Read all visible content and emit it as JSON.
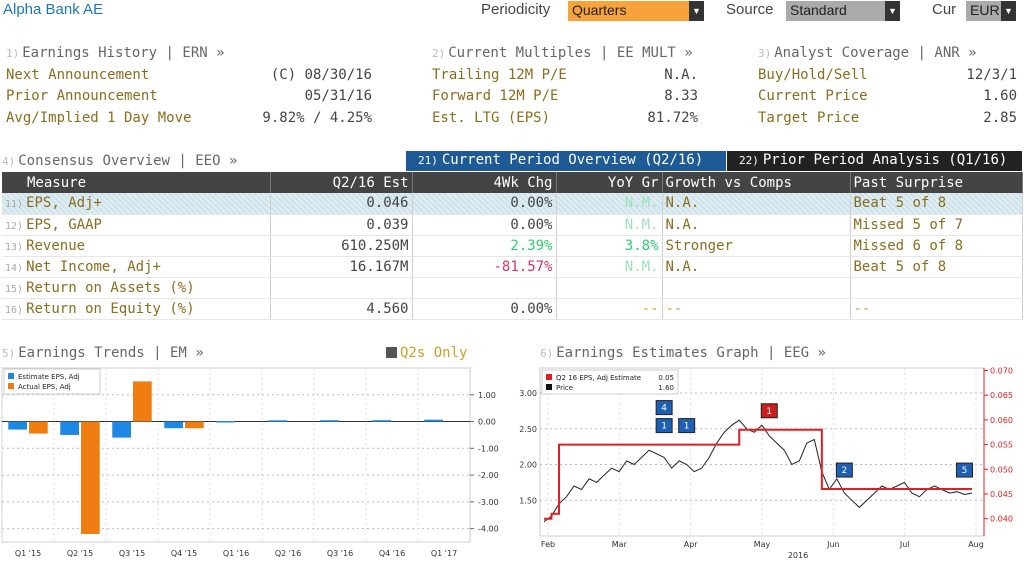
{
  "header": {
    "company": "Alpha Bank AE",
    "periodicity_label": "Periodicity",
    "periodicity_value": "Quarters",
    "source_label": "Source",
    "source_value": "Standard",
    "cur_label": "Cur",
    "cur_value": "EUR"
  },
  "earnings_history": {
    "num": "1)",
    "title": "Earnings History | ERN »",
    "rows": [
      {
        "label": "Next Announcement",
        "value": "(C)  08/30/16"
      },
      {
        "label": "Prior Announcement",
        "value": "05/31/16"
      },
      {
        "label": "Avg/Implied 1 Day Move",
        "value": "9.82% / 4.25%"
      }
    ]
  },
  "current_multiples": {
    "num": "2)",
    "title": "Current Multiples | EE MULT »",
    "rows": [
      {
        "label": "Trailing 12M P/E",
        "value": "N.A."
      },
      {
        "label": "Forward 12M P/E",
        "value": "8.33"
      },
      {
        "label": "Est. LTG (EPS)",
        "value": "81.72%"
      }
    ]
  },
  "analyst_coverage": {
    "num": "3)",
    "title": "Analyst Coverage | ANR »",
    "rows": [
      {
        "label": "Buy/Hold/Sell",
        "value": "12/3/1"
      },
      {
        "label": "Current Price",
        "value": "1.60"
      },
      {
        "label": "Target Price",
        "value": "2.85"
      }
    ]
  },
  "consensus": {
    "num": "4)",
    "title": "Consensus Overview | EEO »",
    "tab1_num": "21)",
    "tab1": "Current Period Overview (Q2/16)",
    "tab2_num": "22)",
    "tab2": "Prior Period Analysis (Q1/16)",
    "columns": [
      "Measure",
      "Q2/16 Est",
      "4Wk Chg",
      "YoY Gr",
      "Growth vs Comps",
      "Past Surprise"
    ],
    "rows": [
      {
        "num": "11)",
        "measure": "EPS, Adj+",
        "est": "0.046",
        "chg": "0.00%",
        "yoy": "N.M.",
        "comps": "N.A.",
        "surprise": "Beat 5 of 8"
      },
      {
        "num": "12)",
        "measure": "EPS, GAAP",
        "est": "0.039",
        "chg": "0.00%",
        "yoy": "N.M.",
        "comps": "N.A.",
        "surprise": "Missed 5 of 7"
      },
      {
        "num": "13)",
        "measure": "Revenue",
        "est": "610.250M",
        "chg": "2.39%",
        "yoy": "3.8%",
        "comps": "Stronger",
        "surprise": "Missed 6 of 8"
      },
      {
        "num": "14)",
        "measure": "Net Income, Adj+",
        "est": "16.167M",
        "chg": "-81.57%",
        "yoy": "N.M.",
        "comps": "N.A.",
        "surprise": "Beat 5 of 8"
      },
      {
        "num": "15)",
        "measure": "Return on Assets (%)",
        "est": "",
        "chg": "",
        "yoy": "",
        "comps": "",
        "surprise": ""
      },
      {
        "num": "16)",
        "measure": "Return on Equity (%)",
        "est": "4.560",
        "chg": "0.00%",
        "yoy": "--",
        "comps": "--",
        "surprise": "--"
      }
    ]
  },
  "earnings_trends": {
    "num": "5)",
    "title": "Earnings Trends | EM »",
    "q2only": "Q2s Only"
  },
  "earnings_estimates": {
    "num": "6)",
    "title": "Earnings Estimates Graph | EEG »"
  },
  "chart_data": [
    {
      "type": "bar",
      "categories": [
        "Q1 '15",
        "Q2 '15",
        "Q3 '15",
        "Q4 '15",
        "Q1 '16",
        "Q2 '16",
        "Q3 '16",
        "Q4 '16",
        "Q1 '17"
      ],
      "series": [
        {
          "name": "Estimate EPS, Adj",
          "color": "#1e88e5",
          "values": [
            -0.3,
            -0.5,
            -0.6,
            -0.25,
            0.02,
            0.046,
            0.05,
            0.05,
            0.07
          ]
        },
        {
          "name": "Actual EPS, Adj",
          "color": "#f07d12",
          "values": [
            -0.45,
            -4.2,
            1.5,
            -0.25,
            null,
            null,
            null,
            null,
            null
          ]
        }
      ],
      "ylim": [
        -4.5,
        2.0
      ],
      "yticks": [
        "1.00",
        "0.00",
        "-1.00",
        "-2.00",
        "-3.00",
        "-4.00"
      ],
      "ytick_values": [
        1,
        0,
        -1,
        -2,
        -3,
        -4
      ],
      "legend": "top-left",
      "grid": true
    },
    {
      "type": "line",
      "x_labels": [
        "Feb",
        "Mar",
        "Apr",
        "May",
        "Jun",
        "Jul",
        "Aug"
      ],
      "x_sub_label": "2016",
      "legend": "top-left",
      "legend_entries": [
        {
          "name": "Q2 16 EPS, Adj Estimate",
          "value": "0.05",
          "color": "#e02020"
        },
        {
          "name": "Price",
          "value": "1.60",
          "color": "#111111"
        }
      ],
      "left_axis": {
        "ticks": [
          "3.00",
          "2.50",
          "2.00",
          "1.50"
        ],
        "values": [
          3.0,
          2.5,
          2.0,
          1.5
        ],
        "range": [
          1.0,
          3.35
        ]
      },
      "right_axis": {
        "ticks": [
          "0.070",
          "0.065",
          "0.060",
          "0.055",
          "0.050",
          "0.045",
          "0.040"
        ],
        "values": [
          0.07,
          0.065,
          0.06,
          0.055,
          0.05,
          0.045,
          0.04
        ],
        "range": [
          0.0365,
          0.0705
        ]
      },
      "price": [
        1.2,
        1.28,
        1.45,
        1.55,
        1.7,
        1.65,
        1.8,
        1.75,
        1.85,
        1.95,
        1.9,
        2.05,
        2.0,
        2.1,
        2.2,
        2.15,
        2.1,
        1.95,
        2.05,
        2.0,
        1.9,
        1.95,
        2.1,
        2.3,
        2.45,
        2.55,
        2.62,
        2.5,
        2.45,
        2.55,
        2.4,
        2.3,
        2.2,
        2.0,
        2.05,
        2.3,
        2.35,
        1.9,
        1.65,
        1.8,
        1.6,
        1.5,
        1.4,
        1.5,
        1.6,
        1.7,
        1.65,
        1.7,
        1.75,
        1.6,
        1.55,
        1.65,
        1.7,
        1.65,
        1.6,
        1.62,
        1.58,
        1.6
      ],
      "estimate": [
        0.04,
        0.041,
        0.055,
        0.055,
        0.055,
        0.055,
        0.055,
        0.055,
        0.055,
        0.055,
        0.055,
        0.055,
        0.055,
        0.055,
        0.055,
        0.055,
        0.055,
        0.055,
        0.055,
        0.055,
        0.055,
        0.055,
        0.055,
        0.055,
        0.055,
        0.055,
        0.058,
        0.058,
        0.058,
        0.058,
        0.058,
        0.058,
        0.058,
        0.058,
        0.058,
        0.058,
        0.058,
        0.046,
        0.046,
        0.046,
        0.046,
        0.046,
        0.046,
        0.046,
        0.046,
        0.046,
        0.046,
        0.046,
        0.046,
        0.046,
        0.046,
        0.046,
        0.046,
        0.046,
        0.046,
        0.046,
        0.046,
        0.046
      ],
      "markers": [
        {
          "label": "4",
          "color": "#1e5fb4",
          "idx": 16,
          "stack": 1
        },
        {
          "label": "1",
          "color": "#1e5fb4",
          "idx": 16,
          "stack": 0
        },
        {
          "label": "1",
          "color": "#1e5fb4",
          "idx": 19,
          "stack": 0
        },
        {
          "label": "1",
          "color": "#c81e1e",
          "idx": 30,
          "stack": 0
        },
        {
          "label": "2",
          "color": "#1e5fb4",
          "idx": 40,
          "stack": 0
        },
        {
          "label": "5",
          "color": "#1e5fb4",
          "idx": 56,
          "stack": 0
        }
      ]
    }
  ]
}
